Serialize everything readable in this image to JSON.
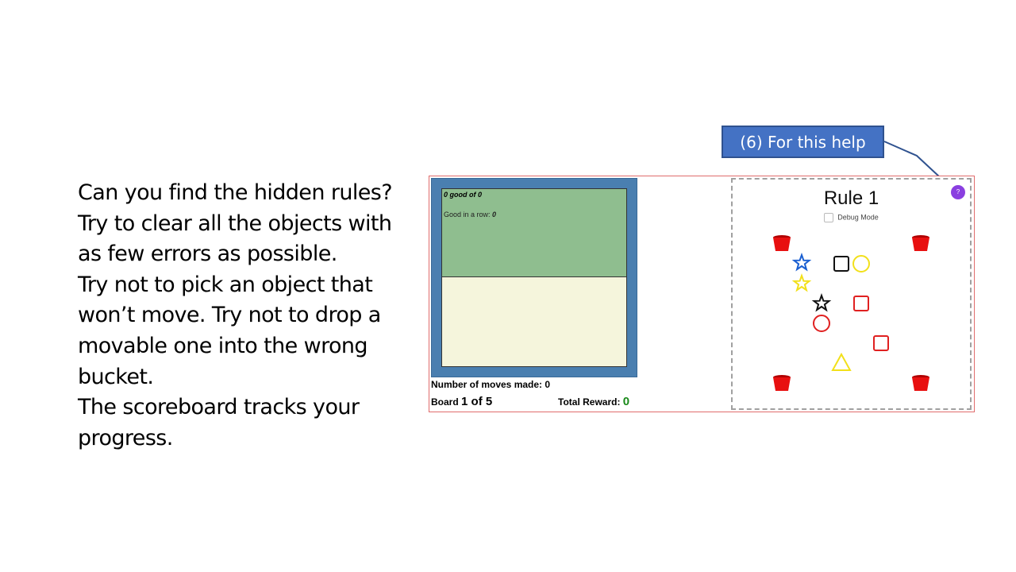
{
  "instructions": {
    "lines": [
      "Can you find the hidden rules?",
      "Try to clear all the objects with as few errors as possible.",
      "Try not to pick an object that won’t move. Try not to drop a movable one into the wrong bucket.",
      "The scoreboard tracks your progress."
    ]
  },
  "callout": {
    "label": "(6) For this help"
  },
  "scoreboard": {
    "good_of_count": "0",
    "good_of_text": " good of ",
    "good_of_total": "0",
    "in_a_row_label": "Good in a row: ",
    "in_a_row_value": "0",
    "moves_label": "Number of moves made: ",
    "moves_value": "0",
    "board_label": "Board ",
    "board_value": "1 of 5",
    "reward_label": "Total Reward: ",
    "reward_value": "0"
  },
  "game": {
    "rule_title": "Rule 1",
    "debug_label": "Debug Mode",
    "help_icon": "?",
    "buckets": [
      "top-left",
      "top-right",
      "bottom-left",
      "bottom-right"
    ],
    "objects": [
      {
        "shape": "star",
        "color": "#1a5fd1"
      },
      {
        "shape": "square",
        "color": "#111111"
      },
      {
        "shape": "circle",
        "color": "#f2e01a"
      },
      {
        "shape": "star",
        "color": "#f2e01a"
      },
      {
        "shape": "star",
        "color": "#111111"
      },
      {
        "shape": "square",
        "color": "#e02020"
      },
      {
        "shape": "circle",
        "color": "#e02020"
      },
      {
        "shape": "square",
        "color": "#e02020"
      },
      {
        "shape": "triangle",
        "color": "#f2e01a"
      }
    ],
    "colors": {
      "bucket": "#e81010",
      "help": "#8a3fe0",
      "reward": "#1a8a1a"
    }
  }
}
